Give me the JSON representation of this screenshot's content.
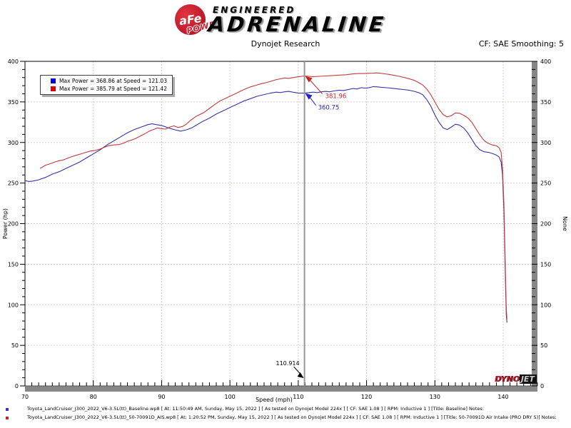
{
  "header": {
    "logo": {
      "circle_text": "aFe",
      "banner_text": "POWER",
      "line1": "ENGINEERED",
      "line2": "ADRENALINE"
    },
    "center_title": "Dynojet Research",
    "right_title": "CF: SAE Smoothing: 5"
  },
  "legend": {
    "items": [
      {
        "swatch_color": "#0000dd",
        "label": "Max Power = 368.86 at Speed = 121.03"
      },
      {
        "swatch_color": "#dd0000",
        "label": "Max Power = 385.79 at Speed = 121.42"
      }
    ]
  },
  "branding": {
    "dynojet_left": "DYNO",
    "dynojet_right": "JET"
  },
  "chart_data": {
    "type": "line",
    "title": "Dynojet Research",
    "xlabel": "Speed (mph)",
    "ylabel_left": "Power (hp)",
    "ylabel_right": "None",
    "xlim": [
      70,
      145
    ],
    "ylim": [
      0,
      400
    ],
    "x_major_ticks": [
      70,
      80,
      90,
      100,
      110,
      120,
      130,
      140
    ],
    "y_major_ticks": [
      0,
      50,
      100,
      150,
      200,
      250,
      300,
      350,
      400
    ],
    "grid": true,
    "grid_color": "#e3c6c6",
    "legend_position": "top-left",
    "cursor": {
      "x": 110.914,
      "label": "110.914",
      "values": [
        {
          "series": "baseline",
          "value": 360.75,
          "label": "360.75",
          "color": "#2222cc"
        },
        {
          "series": "intake",
          "value": 381.96,
          "label": "381.96",
          "color": "#cc2222"
        }
      ]
    },
    "series": [
      {
        "name": "Max Power = 368.86 at Speed = 121.03",
        "id": "baseline",
        "color": "#3434ae",
        "max_power": 368.86,
        "max_power_speed": 121.03,
        "points": [
          [
            70,
            253
          ],
          [
            70.6,
            252
          ],
          [
            71.2,
            252.5
          ],
          [
            72,
            254
          ],
          [
            73,
            257
          ],
          [
            74,
            261
          ],
          [
            75,
            264
          ],
          [
            76,
            268
          ],
          [
            77,
            272
          ],
          [
            78,
            276
          ],
          [
            79,
            281
          ],
          [
            80,
            286
          ],
          [
            81,
            291
          ],
          [
            82,
            297
          ],
          [
            83,
            302
          ],
          [
            84,
            307
          ],
          [
            85,
            312
          ],
          [
            86,
            316
          ],
          [
            87,
            319
          ],
          [
            88,
            322
          ],
          [
            88.6,
            323
          ],
          [
            89.2,
            322
          ],
          [
            90,
            321
          ],
          [
            91,
            318
          ],
          [
            92,
            315.5
          ],
          [
            92.8,
            314
          ],
          [
            93.6,
            315.5
          ],
          [
            94.4,
            318
          ],
          [
            95,
            321
          ],
          [
            96,
            326
          ],
          [
            97,
            330
          ],
          [
            98,
            335
          ],
          [
            99,
            339
          ],
          [
            100,
            343
          ],
          [
            101,
            347
          ],
          [
            102,
            351
          ],
          [
            103,
            354
          ],
          [
            104,
            357
          ],
          [
            105,
            359
          ],
          [
            106,
            361
          ],
          [
            106.8,
            362
          ],
          [
            107.4,
            361.5
          ],
          [
            108,
            362.5
          ],
          [
            108.6,
            363
          ],
          [
            109.2,
            362
          ],
          [
            110,
            361
          ],
          [
            110.9,
            360.8
          ],
          [
            111.6,
            361.5
          ],
          [
            112.2,
            362
          ],
          [
            112.8,
            361.5
          ],
          [
            113.4,
            362.5
          ],
          [
            114,
            363
          ],
          [
            114.6,
            362.5
          ],
          [
            115.2,
            363.5
          ],
          [
            116,
            364.5
          ],
          [
            116.6,
            364
          ],
          [
            117.2,
            365
          ],
          [
            118,
            366.5
          ],
          [
            118.6,
            366
          ],
          [
            119.2,
            367.5
          ],
          [
            120,
            367
          ],
          [
            120.6,
            368
          ],
          [
            121,
            368.9
          ],
          [
            121.6,
            368.5
          ],
          [
            122.2,
            368
          ],
          [
            123,
            367.5
          ],
          [
            123.8,
            366.8
          ],
          [
            124.6,
            366
          ],
          [
            125.4,
            365.3
          ],
          [
            126.2,
            364.5
          ],
          [
            127,
            363
          ],
          [
            127.6,
            361.5
          ],
          [
            128.2,
            359
          ],
          [
            128.8,
            353
          ],
          [
            129.4,
            345
          ],
          [
            130,
            334
          ],
          [
            130.6,
            325
          ],
          [
            131.2,
            318
          ],
          [
            131.8,
            316
          ],
          [
            132.4,
            319
          ],
          [
            133,
            322.5
          ],
          [
            133.6,
            321.5
          ],
          [
            134.2,
            318
          ],
          [
            134.8,
            312
          ],
          [
            135.4,
            304
          ],
          [
            136,
            296
          ],
          [
            136.6,
            291
          ],
          [
            137.2,
            288.5
          ],
          [
            137.8,
            288
          ],
          [
            138.4,
            286.5
          ],
          [
            139,
            284.5
          ],
          [
            139.4,
            282
          ],
          [
            139.7,
            276
          ],
          [
            139.9,
            260
          ],
          [
            140.1,
            215
          ],
          [
            140.3,
            140
          ],
          [
            140.45,
            88
          ],
          [
            140.55,
            78
          ]
        ]
      },
      {
        "name": "Max Power = 385.79 at Speed = 121.42",
        "id": "intake",
        "color": "#c23b3b",
        "max_power": 385.79,
        "max_power_speed": 121.42,
        "points": [
          [
            72.2,
            268
          ],
          [
            72.6,
            270
          ],
          [
            73,
            272
          ],
          [
            73.6,
            273.5
          ],
          [
            74.2,
            275.5
          ],
          [
            75,
            277.5
          ],
          [
            75.6,
            278.5
          ],
          [
            76.2,
            280.5
          ],
          [
            77,
            283
          ],
          [
            77.8,
            285
          ],
          [
            78.4,
            286.5
          ],
          [
            79,
            288
          ],
          [
            79.6,
            289.5
          ],
          [
            80.2,
            290
          ],
          [
            81,
            292
          ],
          [
            81.6,
            294
          ],
          [
            82.2,
            296
          ],
          [
            83,
            297
          ],
          [
            83.8,
            297.5
          ],
          [
            84.4,
            299
          ],
          [
            85,
            301.5
          ],
          [
            85.6,
            303
          ],
          [
            86.2,
            305
          ],
          [
            87,
            308.5
          ],
          [
            87.6,
            311
          ],
          [
            88.2,
            314
          ],
          [
            88.8,
            316
          ],
          [
            89.4,
            318
          ],
          [
            90,
            317
          ],
          [
            90.6,
            316.5
          ],
          [
            91.2,
            319
          ],
          [
            91.8,
            320.5
          ],
          [
            92.4,
            318.5
          ],
          [
            93,
            319.5
          ],
          [
            93.6,
            322.5
          ],
          [
            94.2,
            327
          ],
          [
            95,
            332
          ],
          [
            95.6,
            334.5
          ],
          [
            96.2,
            337
          ],
          [
            97,
            342
          ],
          [
            97.8,
            347
          ],
          [
            98.6,
            351.5
          ],
          [
            99.4,
            354.5
          ],
          [
            100,
            357
          ],
          [
            100.8,
            360
          ],
          [
            101.6,
            363.5
          ],
          [
            102.4,
            366.5
          ],
          [
            103,
            368.5
          ],
          [
            103.8,
            370.5
          ],
          [
            104.6,
            372.5
          ],
          [
            105.4,
            374
          ],
          [
            106,
            375.5
          ],
          [
            106.8,
            377.5
          ],
          [
            107.4,
            378.5
          ],
          [
            108,
            379.5
          ],
          [
            108.6,
            379
          ],
          [
            109.2,
            380
          ],
          [
            110,
            381
          ],
          [
            110.9,
            382
          ],
          [
            111.6,
            381.5
          ],
          [
            112.2,
            381
          ],
          [
            113,
            381.5
          ],
          [
            114,
            382
          ],
          [
            115,
            382.5
          ],
          [
            116,
            383
          ],
          [
            117,
            383.5
          ],
          [
            118,
            384.5
          ],
          [
            118.8,
            385
          ],
          [
            119.6,
            385
          ],
          [
            120.4,
            385.3
          ],
          [
            121,
            385.5
          ],
          [
            121.4,
            385.8
          ],
          [
            122,
            385.4
          ],
          [
            122.6,
            384.6
          ],
          [
            123.2,
            384
          ],
          [
            124,
            382.8
          ],
          [
            124.8,
            381.5
          ],
          [
            125.6,
            380
          ],
          [
            126.4,
            378.2
          ],
          [
            127,
            376.5
          ],
          [
            127.6,
            374
          ],
          [
            128.2,
            371
          ],
          [
            128.8,
            366
          ],
          [
            129.4,
            359
          ],
          [
            130,
            350
          ],
          [
            130.6,
            341
          ],
          [
            131.2,
            334.5
          ],
          [
            131.8,
            331.5
          ],
          [
            132.4,
            333
          ],
          [
            133,
            336.5
          ],
          [
            133.6,
            336
          ],
          [
            134.2,
            333.5
          ],
          [
            134.8,
            330.5
          ],
          [
            135.4,
            325
          ],
          [
            136,
            317
          ],
          [
            136.6,
            309
          ],
          [
            137.2,
            302.5
          ],
          [
            137.8,
            299
          ],
          [
            138.4,
            297
          ],
          [
            139,
            296
          ],
          [
            139.4,
            293.5
          ],
          [
            139.7,
            288
          ],
          [
            139.9,
            268
          ],
          [
            140.1,
            225
          ],
          [
            140.3,
            150
          ],
          [
            140.45,
            95
          ],
          [
            140.55,
            82
          ]
        ]
      }
    ]
  },
  "footer": {
    "rows": [
      {
        "bullet_color": "#3333cc",
        "text": "Toyota_LandCruiser_J300_2022_V6-3.5L(tt)_Baseline.wp8 [ At: 11:50:49 AM, Sunday, May 15, 2022 ] [ As tested on Dynojet Model 224x ] [ CF: SAE 1.08 ] [ RPM: Inductive 1 ] [Title: Baseline]  Notes:"
      },
      {
        "bullet_color": "#cc2222",
        "text": "Toyota_LandCruiser_J300_2022_V6-3.5L(tt)_50-70091D_AIS.wp8 [ At: 1:20:52 PM, Sunday, May 15, 2022 ] [ As tested on Dynojet Model 224x ] [ CF: SAE 1.08 ] [ RPM: Inductive 1 ] [Title: 50-70091D Air Intake (PRO DRY S)]  Notes:"
      }
    ]
  }
}
